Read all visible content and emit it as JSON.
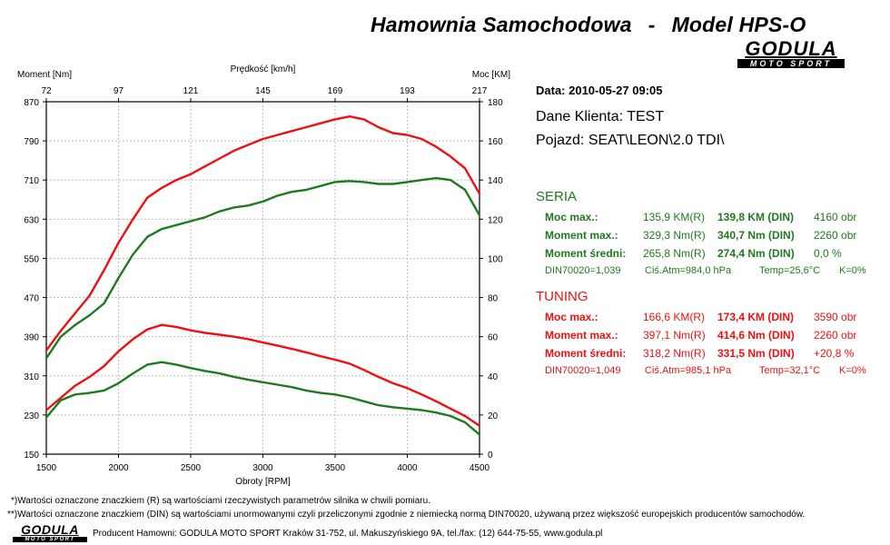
{
  "header": {
    "title_left": "Hamownia Samochodowa",
    "title_sep": "-",
    "title_right": "Model HPS-O",
    "logo_text": "GODULA",
    "logo_subtext": "MOTO SPORT"
  },
  "colors": {
    "seria": "#1f7a1f",
    "tuning": "#ee1010",
    "grid": "#bdbdbd"
  },
  "chart_data": {
    "type": "line",
    "x_label": "Obroty [RPM]",
    "x_top_label": "Prędkość [km/h]",
    "y_left_label": "Moment [Nm]",
    "y_right_label": "Moc [KM]",
    "x_range": [
      1500,
      4500
    ],
    "x_ticks": [
      "1500",
      "2000",
      "2500",
      "3000",
      "3500",
      "4000",
      "4500"
    ],
    "x_top_ticks": [
      "72",
      "97",
      "121",
      "145",
      "169",
      "193",
      "217"
    ],
    "y_left_range": [
      150,
      870
    ],
    "y_left_ticks": [
      "870",
      "790",
      "710",
      "630",
      "550",
      "470",
      "390",
      "310",
      "230",
      "150"
    ],
    "y_right_range": [
      0,
      180
    ],
    "y_right_ticks": [
      "180",
      "160",
      "140",
      "120",
      "100",
      "80",
      "60",
      "40",
      "20",
      "0"
    ],
    "grid": true,
    "series": [
      {
        "group": "tuning",
        "quantity": "power",
        "axis": "right",
        "x": [
          1500,
          1600,
          1700,
          1800,
          1900,
          2000,
          2100,
          2200,
          2300,
          2400,
          2500,
          2600,
          2700,
          2800,
          2900,
          3000,
          3100,
          3200,
          3300,
          3400,
          3500,
          3600,
          3700,
          3800,
          3900,
          4000,
          4100,
          4200,
          4300,
          4400,
          4500
        ],
        "y": [
          53,
          63,
          72,
          81,
          94,
          108,
          120,
          131,
          136,
          140,
          143,
          147,
          151,
          155,
          158,
          161,
          163,
          165,
          167,
          169,
          171,
          172.5,
          171,
          167,
          164,
          163,
          161,
          157,
          152,
          146,
          133
        ]
      },
      {
        "group": "seria",
        "quantity": "power",
        "axis": "right",
        "x": [
          1500,
          1600,
          1700,
          1800,
          1900,
          2000,
          2100,
          2200,
          2300,
          2400,
          2500,
          2600,
          2700,
          2800,
          2900,
          3000,
          3100,
          3200,
          3300,
          3400,
          3500,
          3600,
          3700,
          3800,
          3900,
          4000,
          4100,
          4200,
          4300,
          4400,
          4500
        ],
        "y": [
          49,
          60,
          66,
          71,
          77,
          90,
          102,
          111,
          115,
          117,
          119,
          121,
          124,
          126,
          127,
          129,
          132,
          134,
          135,
          137,
          139,
          139.5,
          139,
          138,
          138,
          139,
          140,
          141,
          140,
          135,
          122
        ]
      },
      {
        "group": "tuning",
        "quantity": "torque",
        "axis": "left",
        "x": [
          1500,
          1600,
          1700,
          1800,
          1900,
          2000,
          2100,
          2200,
          2300,
          2400,
          2500,
          2600,
          2700,
          2800,
          2900,
          3000,
          3100,
          3200,
          3300,
          3400,
          3500,
          3600,
          3700,
          3800,
          3900,
          4000,
          4100,
          4200,
          4300,
          4400,
          4500
        ],
        "y": [
          240,
          265,
          290,
          308,
          330,
          360,
          385,
          405,
          414,
          410,
          403,
          398,
          394,
          390,
          385,
          378,
          372,
          365,
          358,
          350,
          343,
          335,
          322,
          308,
          295,
          285,
          272,
          258,
          243,
          228,
          208
        ]
      },
      {
        "group": "seria",
        "quantity": "torque",
        "axis": "left",
        "x": [
          1500,
          1600,
          1700,
          1800,
          1900,
          2000,
          2100,
          2200,
          2300,
          2400,
          2500,
          2600,
          2700,
          2800,
          2900,
          3000,
          3100,
          3200,
          3300,
          3400,
          3500,
          3600,
          3700,
          3800,
          3900,
          4000,
          4100,
          4200,
          4300,
          4400,
          4500
        ],
        "y": [
          225,
          260,
          272,
          275,
          280,
          295,
          315,
          333,
          338,
          333,
          326,
          320,
          315,
          308,
          302,
          297,
          292,
          287,
          280,
          275,
          272,
          266,
          258,
          250,
          246,
          243,
          240,
          235,
          228,
          215,
          190
        ]
      }
    ]
  },
  "info": {
    "date": "Data: 2010-05-27  09:05",
    "client": "Dane Klienta: TEST",
    "vehicle": "Pojazd: SEAT\\LEON\\2.0 TDI\\"
  },
  "seria": {
    "title": "SERIA",
    "rows": [
      [
        "Moc max.:",
        "135,9 KM(R)",
        "139,8 KM (DIN)",
        "4160 obr"
      ],
      [
        "Moment max.:",
        "329,3 Nm(R)",
        "340,7 Nm (DIN)",
        "2260 obr"
      ],
      [
        "Moment średni:",
        "265,8 Nm(R)",
        "274,4 Nm (DIN)",
        "0,0 %"
      ]
    ],
    "din": [
      "DIN70020=1,039",
      "Ciś.Atm=984,0 hPa",
      "Temp=25,6°C",
      "K=0%"
    ]
  },
  "tuning": {
    "title": "TUNING",
    "rows": [
      [
        "Moc max.:",
        "166,6 KM(R)",
        "173,4 KM (DIN)",
        "3590 obr"
      ],
      [
        "Moment max.:",
        "397,1 Nm(R)",
        "414,6 Nm (DIN)",
        "2260 obr"
      ],
      [
        "Moment średni:",
        "318,2 Nm(R)",
        "331,5 Nm (DIN)",
        "+20,8 %"
      ]
    ],
    "din": [
      "DIN70020=1,049",
      "Ciś.Atm=985,1 hPa",
      "Temp=32,1°C",
      "K=0%"
    ]
  },
  "footer": {
    "note1": "*)Wartości oznaczone znaczkiem (R) są wartościami rzeczywistych parametrów silnika w chwili pomiaru.",
    "note2": "**)Wartości oznaczone znaczkiem (DIN) są wartościami unormowanymi czyli przeliczonymi zgodnie z niemiecką normą DIN70020, używaną przez większość europejskich producentów samochodów.",
    "producer": "Producent Hamowni: GODULA MOTO SPORT Kraków 31-752, ul. Makuszyńskiego 9A, tel./fax: (12) 644-75-55, www.godula.pl"
  }
}
